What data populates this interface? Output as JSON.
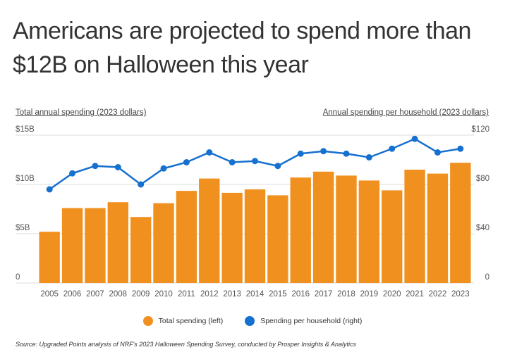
{
  "title": "Americans are projected to spend more than $12B on Halloween this year",
  "source": "Source: Upgraded Points analysis of NRF's 2023 Halloween Spending Survey, conducted by Prosper Insights & Analytics",
  "colors": {
    "bars": "#F0911F",
    "line": "#1670CF",
    "grid": "#dddddd"
  },
  "chart_data": {
    "type": "bar+line",
    "ylabel_left": "Total annual spending (2023 dollars)",
    "ylabel_right": "Annual spending per household (2023 dollars)",
    "categories": [
      "2005",
      "2006",
      "2007",
      "2008",
      "2009",
      "2010",
      "2011",
      "2012",
      "2013",
      "2014",
      "2015",
      "2016",
      "2017",
      "2018",
      "2019",
      "2020",
      "2021",
      "2022",
      "2023"
    ],
    "ylim_left": [
      0,
      15
    ],
    "ylim_right": [
      0,
      120
    ],
    "yticks_left": [
      {
        "v": 0,
        "label": "0"
      },
      {
        "v": 5,
        "label": "$5B"
      },
      {
        "v": 10,
        "label": "$10B"
      },
      {
        "v": 15,
        "label": "$15B"
      }
    ],
    "yticks_right": [
      {
        "v": 0,
        "label": "0"
      },
      {
        "v": 40,
        "label": "$40"
      },
      {
        "v": 80,
        "label": "$80"
      },
      {
        "v": 120,
        "label": "$120"
      }
    ],
    "grid": true,
    "legend_position": "bottom",
    "series": [
      {
        "name": "Total spending (left)",
        "type": "bar",
        "axis": "left",
        "unit": "billion USD",
        "values": [
          5.2,
          7.6,
          7.6,
          8.2,
          6.7,
          8.1,
          9.35,
          10.6,
          9.15,
          9.5,
          8.9,
          10.7,
          11.3,
          10.9,
          10.4,
          9.4,
          11.5,
          11.1,
          12.2
        ]
      },
      {
        "name": "Spending per household (right)",
        "type": "line",
        "axis": "right",
        "unit": "USD",
        "values": [
          76,
          89,
          95,
          94,
          80,
          93,
          98,
          106,
          98,
          99,
          95,
          105,
          107,
          105,
          102,
          109,
          117,
          106,
          109
        ]
      }
    ]
  }
}
